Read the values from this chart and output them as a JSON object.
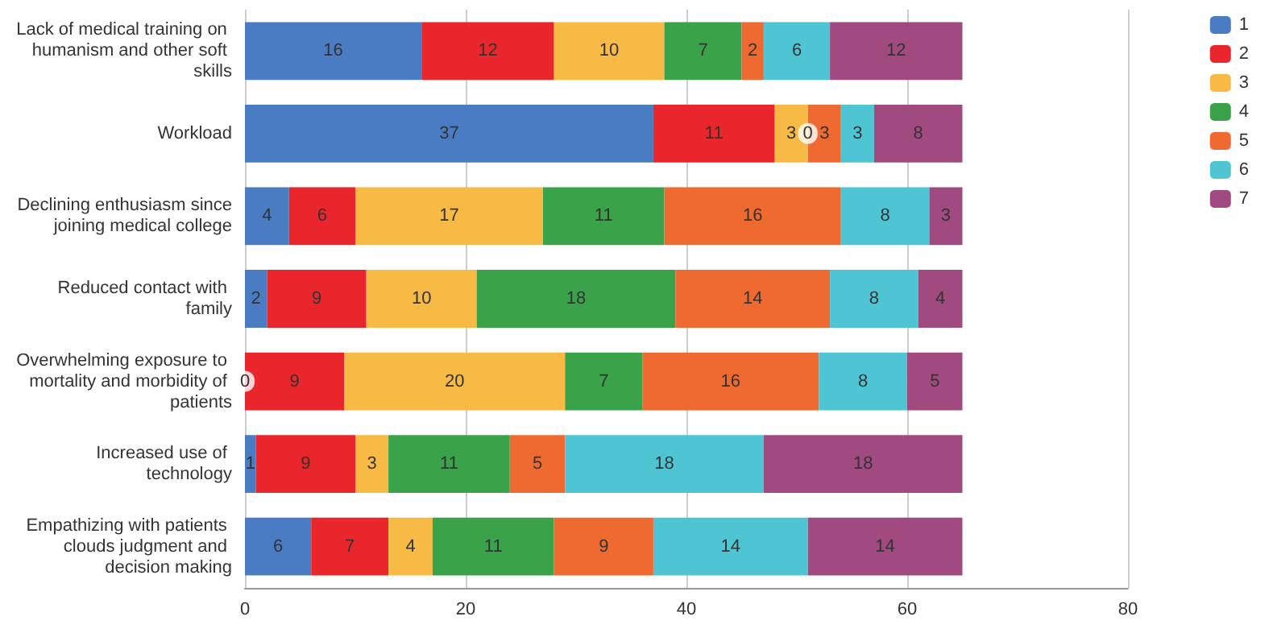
{
  "chart_data": {
    "type": "bar",
    "orientation": "horizontal",
    "stacked": true,
    "data_labels": true,
    "grid": "x",
    "legend": "top right",
    "categories": [
      "Lack of medical training on humanism and other soft skills",
      "Workload",
      "Declining enthusiasm since joining medical college",
      "Reduced contact with family",
      "Overwhelming exposure to mortality and morbidity of patients",
      "Increased use of technology",
      "Empathizing with patients clouds judgment and decision making"
    ],
    "xlim": [
      0,
      80
    ],
    "xticks": [
      0,
      20,
      40,
      60,
      80
    ],
    "annotations": [
      {
        "text": "0",
        "x": 0,
        "y": "Overwhelming exposure to mortality and morbidity of patients"
      },
      {
        "text": "0",
        "x": 51,
        "y": "Workload"
      }
    ],
    "series": [
      {
        "name": "1",
        "color": "#4a7cc4",
        "values": [
          16,
          37,
          4,
          2,
          0,
          1,
          6
        ],
        "value_labels": [
          "16",
          "37",
          "4",
          "2",
          null,
          "1",
          "6"
        ]
      },
      {
        "name": "2",
        "color": "#e8262c",
        "values": [
          12,
          11,
          6,
          9,
          9,
          9,
          7
        ]
      },
      {
        "name": "3",
        "color": "#f7bb45",
        "values": [
          10,
          3,
          17,
          10,
          20,
          3,
          4
        ]
      },
      {
        "name": "4",
        "color": "#3aa34a",
        "values": [
          7,
          0,
          11,
          18,
          7,
          11,
          11
        ],
        "value_labels": [
          "7",
          null,
          "11",
          "18",
          "7",
          "11",
          "11"
        ]
      },
      {
        "name": "5",
        "color": "#ee6a30",
        "values": [
          2,
          3,
          16,
          14,
          16,
          5,
          9
        ]
      },
      {
        "name": "6",
        "color": "#4fc5d4",
        "values": [
          6,
          3,
          8,
          8,
          8,
          18,
          14
        ]
      },
      {
        "name": "7",
        "color": "#a04a80",
        "values": [
          12,
          8,
          3,
          4,
          5,
          18,
          14
        ]
      }
    ]
  }
}
